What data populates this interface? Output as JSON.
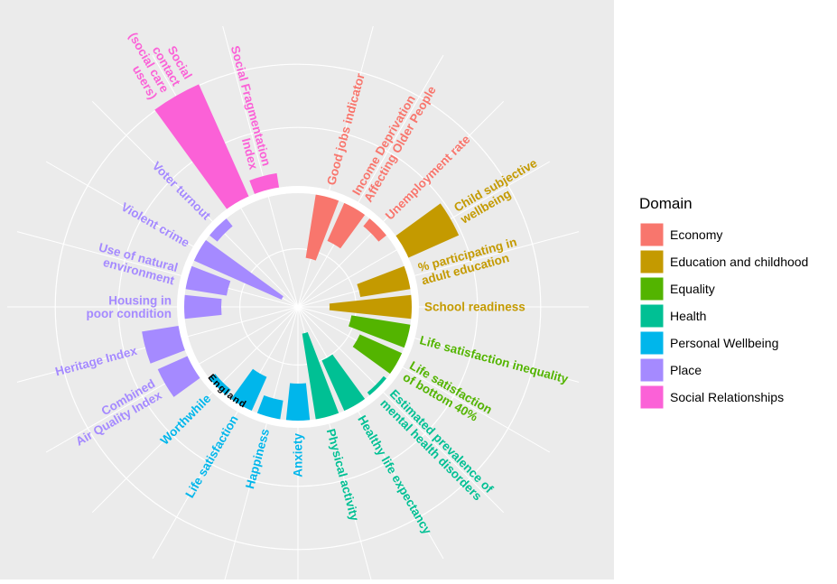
{
  "chart_data": {
    "type": "radial-bar",
    "baseline_label": "England",
    "legend_title": "Domain",
    "ylim": [
      -130,
      150
    ],
    "series": [
      {
        "name": "Economy",
        "color": "#F8766D",
        "categories": [
          "Good jobs indicator",
          "Income Deprivation\nAffecting Older People",
          "Unemployment rate"
        ],
        "values": [
          -75,
          -50,
          -15
        ]
      },
      {
        "name": "Education and childhood",
        "color": "#C49A00",
        "categories": [
          "Child subjective\nwellbeing",
          "% participating in\nadult education",
          "School readiness"
        ],
        "values": [
          65,
          -60,
          -95
        ]
      },
      {
        "name": "Equality",
        "color": "#53B400",
        "categories": [
          "Life satisfaction inequality",
          "Life satisfaction\nof bottom 40%"
        ],
        "values": [
          -70,
          -55
        ]
      },
      {
        "name": "Health",
        "color": "#00C094",
        "categories": [
          "Estimated prevalence of\nmental health disorders",
          "Healthy life expectancy",
          "Physical activity"
        ],
        "values": [
          -8,
          -65,
          -100
        ]
      },
      {
        "name": "Personal Wellbeing",
        "color": "#00B6EB",
        "categories": [
          "Anxiety",
          "Happiness",
          "Life satisfaction",
          "Worthwhile"
        ],
        "values": [
          -45,
          -25,
          -45,
          -12
        ]
      },
      {
        "name": "Place",
        "color": "#A58AFF",
        "categories": [
          "Combined\nAir Quality Index",
          "Heritage Index",
          "Housing in\npoor condition",
          "Use of natural\nenvironment",
          "Violent crime",
          "Voter turnout"
        ],
        "values": [
          40,
          45,
          -45,
          -50,
          -110,
          -15
        ]
      },
      {
        "name": "Social Relationships",
        "color": "#FB61D7",
        "categories": [
          "Social\ncontact\n(social care\nusers)",
          "Social Fragmentation\nIndex"
        ],
        "values": [
          140,
          20
        ]
      }
    ]
  }
}
